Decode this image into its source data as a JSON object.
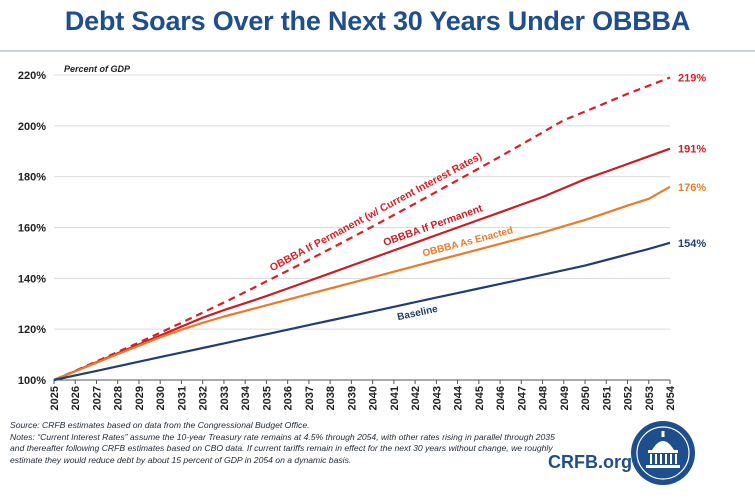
{
  "title": "Debt Soars Over the Next 30 Years Under OBBBA",
  "chart_data": {
    "type": "line",
    "ylabel": "Percent of GDP",
    "ylim": [
      100,
      220
    ],
    "yticks": [
      100,
      120,
      140,
      160,
      180,
      200,
      220
    ],
    "ytick_labels": [
      "100%",
      "120%",
      "140%",
      "160%",
      "180%",
      "200%",
      "220%"
    ],
    "x": [
      2025,
      2026,
      2027,
      2028,
      2029,
      2030,
      2031,
      2032,
      2033,
      2034,
      2035,
      2036,
      2037,
      2038,
      2039,
      2040,
      2041,
      2042,
      2043,
      2044,
      2045,
      2046,
      2047,
      2048,
      2049,
      2050,
      2051,
      2052,
      2053,
      2054
    ],
    "x_labels": [
      "2025",
      "2026",
      "2027",
      "2028",
      "2029",
      "2030",
      "2031",
      "2032",
      "2033",
      "2034",
      "2035",
      "2036",
      "2037",
      "2038",
      "2039",
      "2040",
      "2041",
      "2042",
      "2043",
      "2044",
      "2045",
      "2046",
      "2047",
      "2048",
      "2049",
      "2050",
      "2051",
      "2052",
      "2053",
      "2054"
    ],
    "series": [
      {
        "name": "OBBBA If Permanent (w/ Current Interest Rates)",
        "color": "#d91f26",
        "dashed": true,
        "end_label": "219%",
        "values": [
          100,
          103.6,
          107.3,
          111.0,
          114.8,
          118.6,
          122.5,
          126.5,
          130.5,
          134.6,
          138.8,
          143.0,
          147.3,
          151.6,
          156.0,
          160.4,
          164.9,
          169.4,
          174.0,
          178.6,
          183.2,
          187.9,
          192.6,
          197.4,
          202.2,
          205.6,
          209.1,
          212.6,
          215.8,
          219
        ]
      },
      {
        "name": "OBBBA If Permanent",
        "color": "#c81e25",
        "dashed": false,
        "end_label": "191%",
        "values": [
          100,
          103.5,
          107.0,
          110.5,
          114.0,
          117.5,
          121.0,
          124.5,
          127.5,
          130.2,
          133.0,
          136.0,
          139.0,
          142.0,
          145.0,
          148.0,
          151.0,
          154.0,
          157.0,
          160.0,
          163.0,
          166.0,
          169.0,
          172.0,
          175.5,
          179.0,
          182.0,
          185.0,
          188.0,
          191
        ]
      },
      {
        "name": "OBBBA As Enacted",
        "color": "#e87c2a",
        "dashed": false,
        "end_label": "176%",
        "values": [
          100,
          103.4,
          106.8,
          110.2,
          113.5,
          116.8,
          119.8,
          122.5,
          125.0,
          127.2,
          129.4,
          131.6,
          133.8,
          136.0,
          138.2,
          140.4,
          142.6,
          144.8,
          147.0,
          149.2,
          151.4,
          153.6,
          155.8,
          158.0,
          160.5,
          163.0,
          165.8,
          168.6,
          171.3,
          176
        ]
      },
      {
        "name": "Baseline",
        "color": "#1f3f73",
        "dashed": false,
        "end_label": "154%",
        "values": [
          100,
          101.8,
          103.6,
          105.4,
          107.2,
          109.0,
          110.8,
          112.6,
          114.4,
          116.2,
          118.0,
          119.8,
          121.6,
          123.4,
          125.2,
          127.0,
          128.8,
          130.6,
          132.4,
          134.2,
          136.0,
          137.8,
          139.6,
          141.4,
          143.2,
          145.0,
          147.2,
          149.4,
          151.6,
          154
        ]
      }
    ],
    "annotations": [
      {
        "text": "OBBBA If Permanent (w/ Current Interest Rates)",
        "series": 0
      },
      {
        "text": "OBBBA If Permanent",
        "series": 1
      },
      {
        "text": "OBBBA As Enacted",
        "series": 2
      },
      {
        "text": "Baseline",
        "series": 3
      }
    ]
  },
  "footer": {
    "source": "Source: CRFB estimates based on data from the Congressional Budget Office.",
    "notes": "Notes: “Current Interest Rates” assume the 10-year Treasury rate remains at 4.5% through 2054, with other rates rising in parallel through 2035 and thereafter following CRFB estimates based on CBO data. If current tariffs remain in effect for the next 30 years without change, we roughly estimate they would reduce debt by about 15 percent of GDP in 2054 on a dynamic basis."
  },
  "brand": "CRFB.org",
  "colors": {
    "title": "#1f4e8c",
    "brand": "#1f4e8c"
  }
}
